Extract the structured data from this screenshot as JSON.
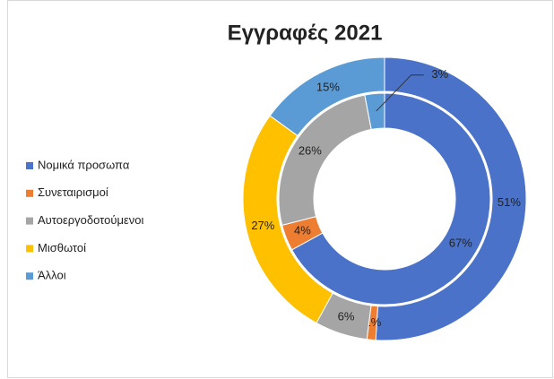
{
  "chart_data": {
    "type": "double-donut",
    "title": "Εγγραφές 2021",
    "categories": [
      "Νομικά προσωπα",
      "Συνεταιρισμοί",
      "Αυτοεργοδοτούμενοι",
      "Μισθωτοί",
      "Άλλοι"
    ],
    "colors": [
      "#4a72c8",
      "#ed7d31",
      "#a5a5a5",
      "#ffc000",
      "#5b9bd5"
    ],
    "series": [
      {
        "values": [
          51,
          1,
          6,
          27,
          15
        ],
        "value_labels": [
          "51%",
          "1%",
          "6%",
          "27%",
          "15%"
        ]
      },
      {
        "values": [
          67,
          4,
          26,
          0,
          3
        ],
        "value_labels": [
          "67%",
          "4%",
          "26%",
          null,
          "3%"
        ]
      }
    ]
  }
}
